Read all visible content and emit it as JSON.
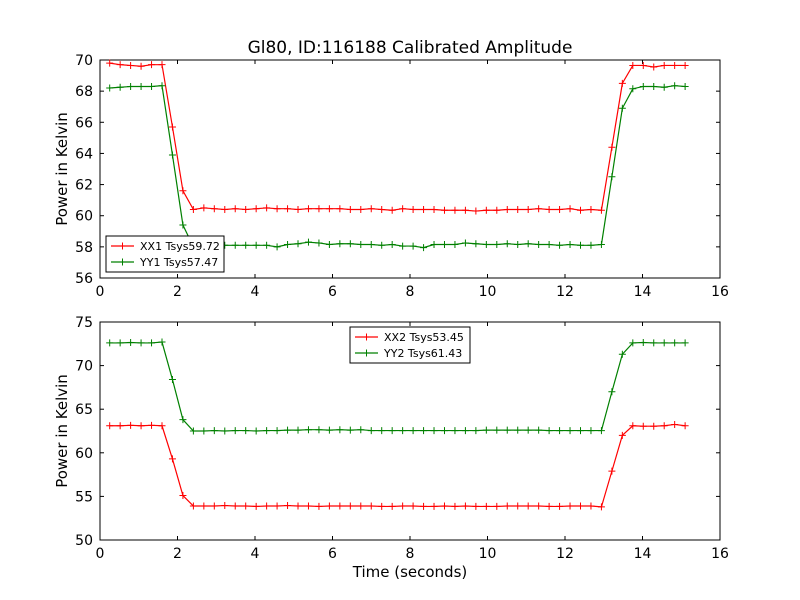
{
  "figure": {
    "title": "Gl80, ID:116188 Calibrated Amplitude"
  },
  "chart_data": [
    {
      "type": "line",
      "title": "Gl80, ID:116188 Calibrated Amplitude",
      "xlabel": "",
      "ylabel": "Power in Kelvin",
      "xlim": [
        0,
        16
      ],
      "ylim": [
        56,
        70
      ],
      "xticks": [
        0,
        2,
        4,
        6,
        8,
        10,
        12,
        14,
        16
      ],
      "yticks": [
        56,
        58,
        60,
        62,
        64,
        66,
        68,
        70
      ],
      "grid": false,
      "legend_position": "lower-left",
      "x": [
        0.25,
        0.52,
        0.79,
        1.06,
        1.33,
        1.6,
        1.87,
        2.14,
        2.41,
        2.68,
        2.95,
        3.22,
        3.49,
        3.76,
        4.03,
        4.3,
        4.57,
        4.84,
        5.11,
        5.38,
        5.65,
        5.92,
        6.19,
        6.46,
        6.73,
        7.0,
        7.27,
        7.54,
        7.81,
        8.08,
        8.35,
        8.62,
        8.89,
        9.16,
        9.43,
        9.7,
        9.97,
        10.24,
        10.51,
        10.78,
        11.05,
        11.32,
        11.59,
        11.86,
        12.13,
        12.4,
        12.67,
        12.94,
        13.21,
        13.48,
        13.75,
        14.02,
        14.29,
        14.56,
        14.83,
        15.1
      ],
      "series": [
        {
          "name": "XX1 Tsys59.72",
          "color": "#ff0000",
          "values": [
            69.8,
            69.7,
            69.65,
            69.6,
            69.7,
            69.7,
            65.7,
            61.6,
            60.4,
            60.5,
            60.45,
            60.4,
            60.45,
            60.4,
            60.45,
            60.5,
            60.45,
            60.45,
            60.4,
            60.45,
            60.45,
            60.45,
            60.45,
            60.4,
            60.4,
            60.45,
            60.4,
            60.35,
            60.45,
            60.4,
            60.4,
            60.4,
            60.35,
            60.35,
            60.35,
            60.3,
            60.35,
            60.35,
            60.4,
            60.4,
            60.4,
            60.45,
            60.4,
            60.4,
            60.45,
            60.35,
            60.4,
            60.35,
            64.4,
            68.5,
            69.65,
            69.65,
            69.55,
            69.65,
            69.65,
            69.65
          ]
        },
        {
          "name": "YY1 Tsys57.47",
          "color": "#008000",
          "values": [
            68.2,
            68.25,
            68.3,
            68.3,
            68.3,
            68.35,
            63.9,
            59.4,
            58.0,
            58.05,
            58.1,
            58.1,
            58.1,
            58.1,
            58.1,
            58.1,
            58.0,
            58.15,
            58.2,
            58.3,
            58.25,
            58.15,
            58.2,
            58.2,
            58.15,
            58.15,
            58.1,
            58.15,
            58.05,
            58.05,
            57.95,
            58.15,
            58.15,
            58.15,
            58.25,
            58.2,
            58.15,
            58.15,
            58.2,
            58.15,
            58.2,
            58.15,
            58.15,
            58.1,
            58.15,
            58.1,
            58.1,
            58.15,
            62.5,
            66.9,
            68.15,
            68.3,
            68.3,
            68.25,
            68.35,
            68.3
          ]
        }
      ]
    },
    {
      "type": "line",
      "title": "",
      "xlabel": "Time (seconds)",
      "ylabel": "Power in Kelvin",
      "xlim": [
        0,
        16
      ],
      "ylim": [
        50,
        75
      ],
      "xticks": [
        0,
        2,
        4,
        6,
        8,
        10,
        12,
        14,
        16
      ],
      "yticks": [
        50,
        55,
        60,
        65,
        70,
        75
      ],
      "grid": false,
      "legend_position": "upper-center",
      "x": [
        0.25,
        0.52,
        0.79,
        1.06,
        1.33,
        1.6,
        1.87,
        2.14,
        2.41,
        2.68,
        2.95,
        3.22,
        3.49,
        3.76,
        4.03,
        4.3,
        4.57,
        4.84,
        5.11,
        5.38,
        5.65,
        5.92,
        6.19,
        6.46,
        6.73,
        7.0,
        7.27,
        7.54,
        7.81,
        8.08,
        8.35,
        8.62,
        8.89,
        9.16,
        9.43,
        9.7,
        9.97,
        10.24,
        10.51,
        10.78,
        11.05,
        11.32,
        11.59,
        11.86,
        12.13,
        12.4,
        12.67,
        12.94,
        13.21,
        13.48,
        13.75,
        14.02,
        14.29,
        14.56,
        14.83,
        15.1
      ],
      "series": [
        {
          "name": "XX2 Tsys53.45",
          "color": "#ff0000",
          "values": [
            63.1,
            63.1,
            63.15,
            63.1,
            63.15,
            63.1,
            59.3,
            55.1,
            53.9,
            53.9,
            53.9,
            53.95,
            53.9,
            53.9,
            53.85,
            53.9,
            53.9,
            53.95,
            53.9,
            53.9,
            53.85,
            53.9,
            53.9,
            53.9,
            53.9,
            53.9,
            53.85,
            53.85,
            53.9,
            53.9,
            53.85,
            53.85,
            53.9,
            53.85,
            53.9,
            53.85,
            53.85,
            53.85,
            53.9,
            53.9,
            53.9,
            53.9,
            53.85,
            53.85,
            53.9,
            53.9,
            53.9,
            53.8,
            57.9,
            62.0,
            63.1,
            63.05,
            63.05,
            63.1,
            63.25,
            63.1
          ]
        },
        {
          "name": "YY2 Tsys61.43",
          "color": "#008000",
          "values": [
            72.6,
            72.6,
            72.65,
            72.6,
            72.6,
            72.7,
            68.4,
            63.8,
            62.5,
            62.5,
            62.55,
            62.5,
            62.55,
            62.55,
            62.5,
            62.55,
            62.55,
            62.6,
            62.6,
            62.65,
            62.65,
            62.6,
            62.65,
            62.6,
            62.65,
            62.55,
            62.55,
            62.55,
            62.55,
            62.55,
            62.55,
            62.55,
            62.55,
            62.55,
            62.55,
            62.55,
            62.6,
            62.6,
            62.6,
            62.6,
            62.6,
            62.6,
            62.55,
            62.55,
            62.55,
            62.55,
            62.55,
            62.55,
            67.0,
            71.3,
            72.6,
            72.65,
            72.6,
            72.6,
            72.6,
            72.6
          ]
        }
      ]
    }
  ]
}
